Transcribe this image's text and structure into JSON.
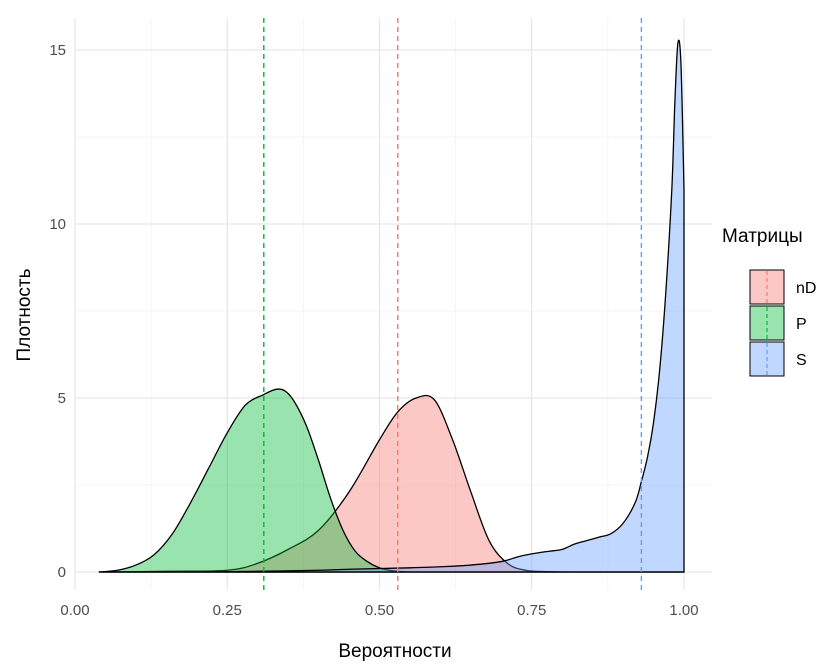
{
  "chart_data": {
    "type": "area",
    "xlabel": "Вероятности",
    "ylabel": "Плотность",
    "xlim": [
      0.0,
      1.0
    ],
    "ylim": [
      0,
      15.5
    ],
    "x_ticks": [
      0.0,
      0.25,
      0.5,
      0.75,
      1.0
    ],
    "x_tick_labels": [
      "0.00",
      "0.25",
      "0.50",
      "0.75",
      "1.00"
    ],
    "y_ticks": [
      0,
      5,
      10,
      15
    ],
    "y_tick_labels": [
      "0",
      "5",
      "10",
      "15"
    ],
    "grid": true,
    "legend": {
      "title": "Матрицы",
      "placement": "right"
    },
    "series": [
      {
        "name": "nD",
        "fill": "#F8766D",
        "mean": 0.53,
        "x": [
          0.04,
          0.15,
          0.25,
          0.3,
          0.35,
          0.4,
          0.45,
          0.5,
          0.53,
          0.56,
          0.59,
          0.62,
          0.65,
          0.68,
          0.71,
          0.74,
          0.78,
          0.83,
          0.9,
          1.0
        ],
        "y": [
          0.0,
          0.02,
          0.05,
          0.25,
          0.65,
          1.2,
          2.3,
          3.8,
          4.6,
          5.0,
          4.95,
          3.8,
          2.3,
          0.9,
          0.25,
          0.05,
          0.01,
          0.0,
          0.0,
          0.0
        ]
      },
      {
        "name": "P",
        "fill": "#00BA38",
        "mean": 0.31,
        "x": [
          0.04,
          0.07,
          0.1,
          0.13,
          0.16,
          0.19,
          0.22,
          0.25,
          0.28,
          0.31,
          0.33,
          0.345,
          0.36,
          0.38,
          0.4,
          0.42,
          0.44,
          0.46,
          0.48,
          0.5,
          0.52,
          0.55,
          0.6,
          0.7,
          0.8,
          0.9,
          1.0
        ],
        "y": [
          0.0,
          0.05,
          0.2,
          0.5,
          1.1,
          2.0,
          3.0,
          4.0,
          4.8,
          5.1,
          5.25,
          5.2,
          4.9,
          4.2,
          3.2,
          2.1,
          1.2,
          0.6,
          0.3,
          0.12,
          0.04,
          0.0,
          0.0,
          0.0,
          0.0,
          0.0,
          0.0
        ]
      },
      {
        "name": "S",
        "fill": "#619CFF",
        "mean": 0.93,
        "x": [
          0.04,
          0.2,
          0.3,
          0.4,
          0.45,
          0.5,
          0.55,
          0.6,
          0.65,
          0.7,
          0.73,
          0.76,
          0.78,
          0.8,
          0.82,
          0.84,
          0.86,
          0.88,
          0.9,
          0.92,
          0.93,
          0.94,
          0.95,
          0.96,
          0.97,
          0.98,
          0.985,
          0.99,
          0.995,
          1.0
        ],
        "y": [
          0.0,
          0.0,
          0.02,
          0.05,
          0.08,
          0.1,
          0.12,
          0.15,
          0.2,
          0.3,
          0.45,
          0.55,
          0.6,
          0.65,
          0.8,
          0.9,
          1.0,
          1.1,
          1.4,
          2.0,
          2.6,
          3.3,
          4.3,
          5.8,
          8.0,
          11.0,
          13.5,
          15.2,
          14.6,
          11.0
        ]
      }
    ]
  }
}
